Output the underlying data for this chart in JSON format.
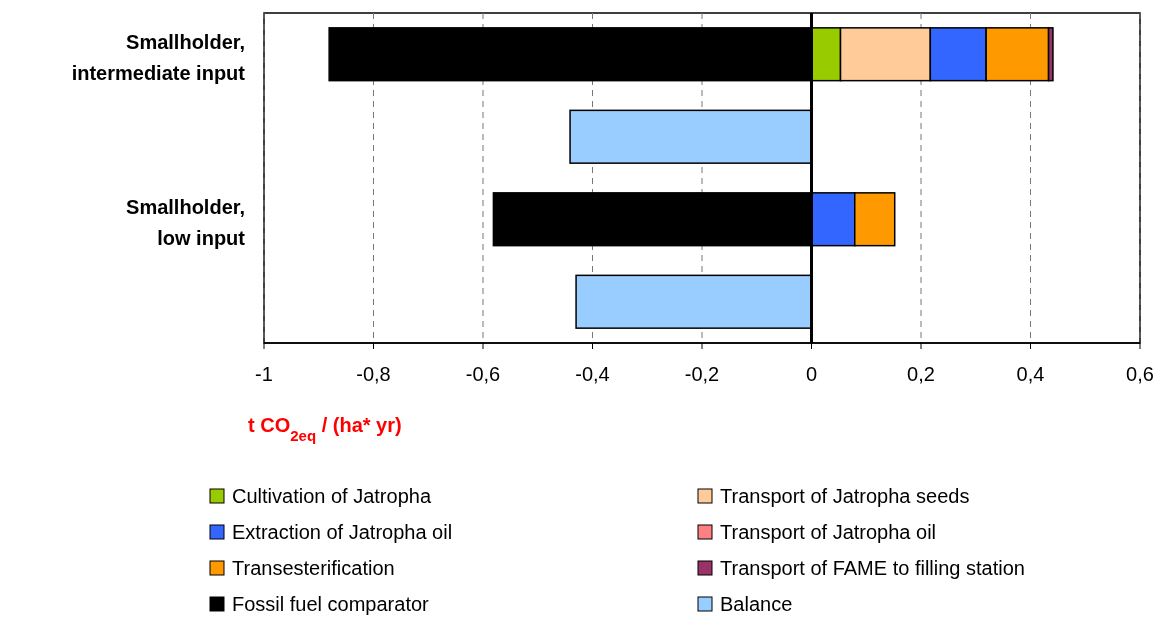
{
  "chart_data": {
    "type": "bar",
    "orientation": "horizontal",
    "stacked": true,
    "categories": [
      "Smallholder, intermediate input",
      null,
      "Smallholder, low input",
      null
    ],
    "series": [
      {
        "name": "Cultivation of Jatropha",
        "color": "#99cc00",
        "values": [
          0.053,
          0,
          0,
          0
        ]
      },
      {
        "name": "Transport of Jatropha seeds",
        "color": "#ffcc99",
        "values": [
          0.164,
          0,
          0,
          0
        ]
      },
      {
        "name": "Extraction of Jatropha oil",
        "color": "#3366ff",
        "values": [
          0.102,
          0,
          0.079,
          0
        ]
      },
      {
        "name": "Transport of Jatropha oil",
        "color": "#ff8080",
        "values": [
          0,
          0,
          0,
          0
        ]
      },
      {
        "name": "Transesterification",
        "color": "#ff9900",
        "values": [
          0.114,
          0,
          0.073,
          0
        ]
      },
      {
        "name": "Transport of FAME to filling station",
        "color": "#993366",
        "values": [
          0.008,
          0,
          0,
          0
        ]
      },
      {
        "name": "Fossil fuel comparator",
        "color": "#000000",
        "values": [
          -0.881,
          0,
          -0.581,
          0
        ]
      },
      {
        "name": "Balance",
        "color": "#99ccff",
        "values": [
          0,
          -0.441,
          0,
          -0.43
        ]
      }
    ],
    "xlim": [
      -1,
      0.6
    ],
    "xticks": [
      {
        "value": -1,
        "label": "-1"
      },
      {
        "value": -0.8,
        "label": "-0,8"
      },
      {
        "value": -0.6,
        "label": "-0,6"
      },
      {
        "value": -0.4,
        "label": "-0,4"
      },
      {
        "value": -0.2,
        "label": "-0,2"
      },
      {
        "value": 0,
        "label": "0"
      },
      {
        "value": 0.2,
        "label": "0,2"
      },
      {
        "value": 0.4,
        "label": "0,4"
      },
      {
        "value": 0.6,
        "label": "0,6"
      }
    ],
    "xlabel": "t CO$_{2eq}$ / (ha* yr)",
    "grid": "x",
    "legend": "bottom"
  }
}
